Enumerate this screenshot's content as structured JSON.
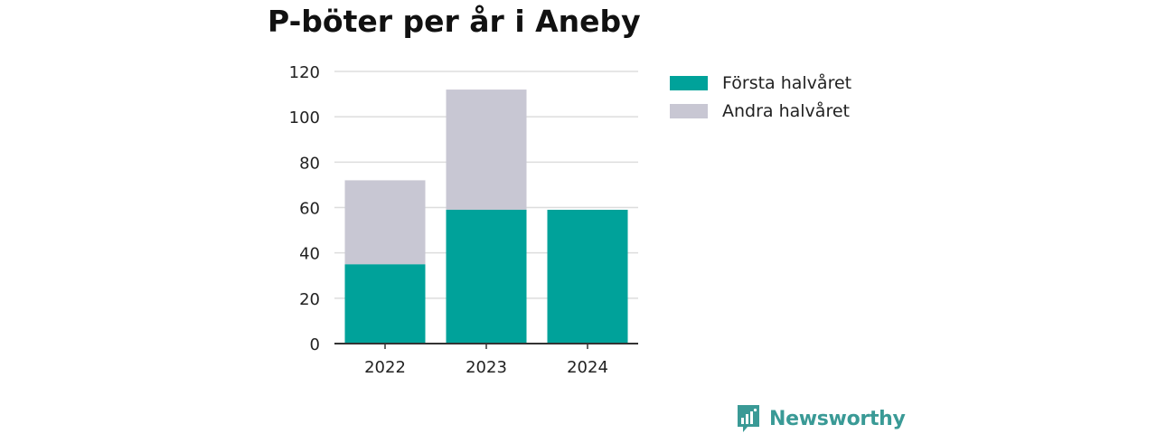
{
  "colors": {
    "first_half": "#00a29a",
    "second_half": "#c8c7d3",
    "grid": "#dddddd",
    "axis": "#333333",
    "brand": "#3a9a96"
  },
  "chart_data": {
    "type": "bar",
    "stacked": true,
    "title": "P-böter per år i Aneby",
    "categories": [
      "2022",
      "2023",
      "2024"
    ],
    "series": [
      {
        "name": "Första halvåret",
        "values": [
          35,
          59,
          59
        ]
      },
      {
        "name": "Andra halvåret",
        "values": [
          37,
          53,
          0
        ]
      }
    ],
    "ylim": [
      0,
      120
    ],
    "yticks": [
      "0",
      "20",
      "40",
      "60",
      "80",
      "100",
      "120"
    ],
    "grid": true,
    "legend_position": "right"
  },
  "brand": {
    "name": "Newsworthy",
    "icon": "newsworthy-logo-icon"
  }
}
